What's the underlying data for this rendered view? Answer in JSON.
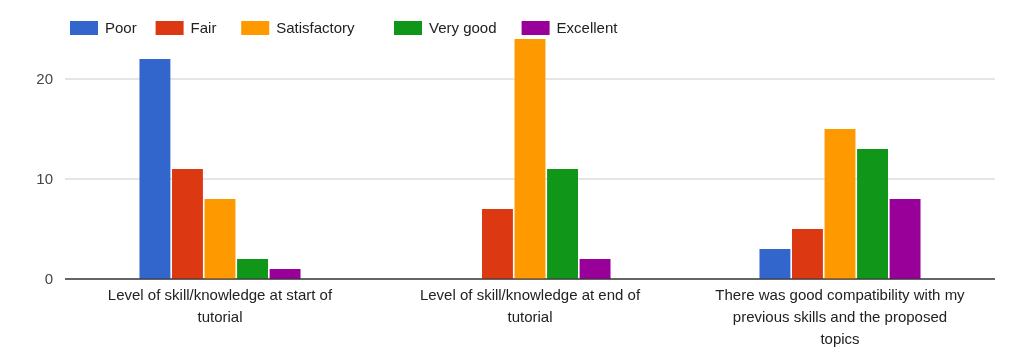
{
  "chart_data": {
    "type": "bar",
    "categories": [
      "Level of skill/knowledge at start of tutorial",
      "Level of skill/knowledge at end of tutorial",
      "There was good compatibility with my previous skills and the proposed topics"
    ],
    "series": [
      {
        "name": "Poor",
        "color": "#3366cc",
        "values": [
          22,
          0,
          3
        ]
      },
      {
        "name": "Fair",
        "color": "#dc3912",
        "values": [
          11,
          7,
          5
        ]
      },
      {
        "name": "Satisfactory",
        "color": "#ff9900",
        "values": [
          8,
          24,
          15
        ]
      },
      {
        "name": "Very good",
        "color": "#109618",
        "values": [
          2,
          11,
          13
        ]
      },
      {
        "name": "Excellent",
        "color": "#990099",
        "values": [
          1,
          2,
          8
        ]
      }
    ],
    "ylim": [
      0,
      24
    ],
    "yticks": [
      0,
      10,
      20
    ],
    "grid": "y",
    "legend": "top left"
  }
}
